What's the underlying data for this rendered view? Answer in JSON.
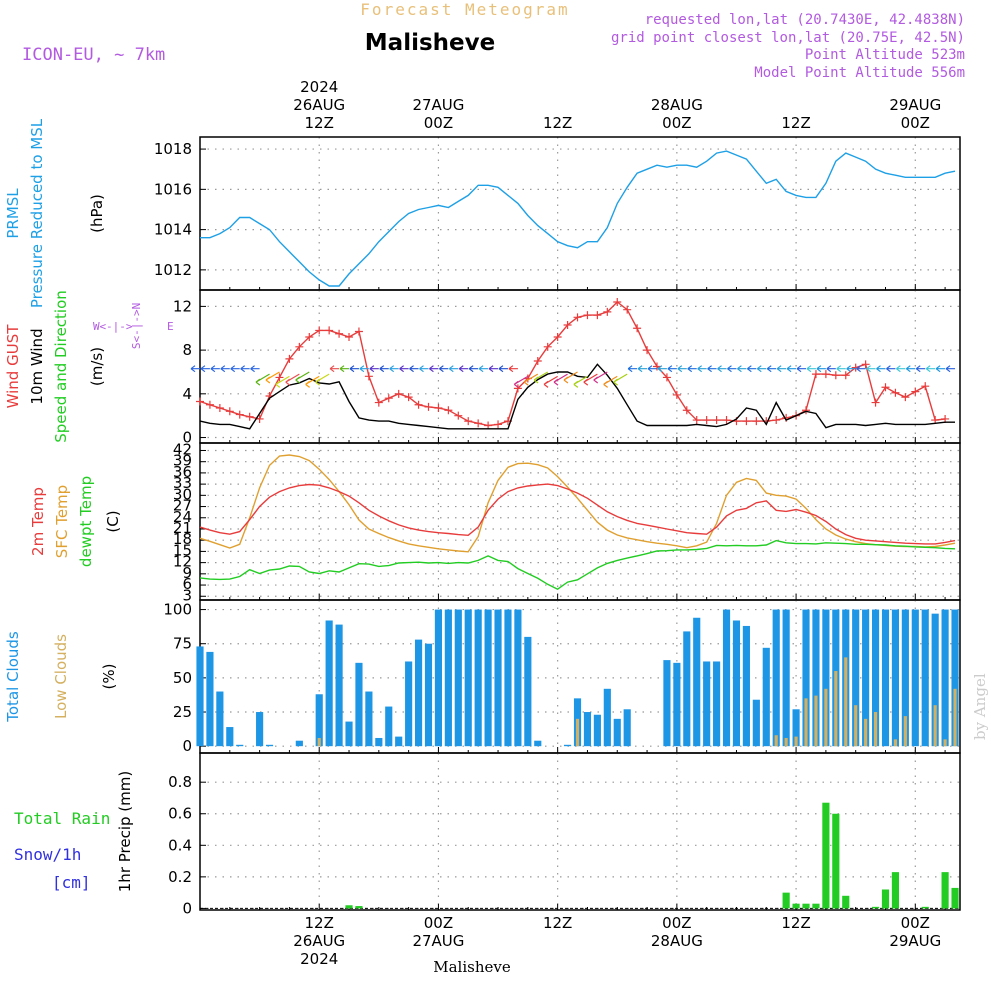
{
  "header": {
    "forecast_title": "Forecast Meteogram",
    "location": "Malisheve",
    "model": "ICON-EU, ~ 7km",
    "requested": "requested lon,lat (20.7430E, 42.4838N)",
    "grid_point": "grid point closest lon,lat (20.75E, 42.5N)",
    "point_altitude": "Point Altitude 523m",
    "model_altitude": "Model Point Altitude 556m",
    "footer_location": "Malisheve",
    "watermark": "by Angel"
  },
  "time_axis": {
    "top": [
      {
        "h": 12,
        "lines": [
          "2024",
          "26AUG",
          "12Z"
        ]
      },
      {
        "h": 24,
        "lines": [
          "27AUG",
          "00Z"
        ]
      },
      {
        "h": 36,
        "lines": [
          "12Z"
        ]
      },
      {
        "h": 48,
        "lines": [
          "28AUG",
          "00Z"
        ]
      },
      {
        "h": 60,
        "lines": [
          "12Z"
        ]
      },
      {
        "h": 72,
        "lines": [
          "29AUG",
          "00Z"
        ]
      }
    ],
    "bottom": [
      {
        "h": 12,
        "lines": [
          "12Z",
          "26AUG",
          "2024"
        ]
      },
      {
        "h": 24,
        "lines": [
          "00Z",
          "27AUG"
        ]
      },
      {
        "h": 36,
        "lines": [
          "12Z"
        ]
      },
      {
        "h": 48,
        "lines": [
          "00Z",
          "28AUG"
        ]
      },
      {
        "h": 60,
        "lines": [
          "12Z"
        ]
      },
      {
        "h": 72,
        "lines": [
          "00Z",
          "29AUG"
        ]
      }
    ]
  },
  "colors": {
    "pressure": "#1ea0e6",
    "gust": "#e83c3c",
    "wind": "#000000",
    "temp": "#e83c3c",
    "sfc": "#e0a030",
    "dewpt": "#22cc22",
    "total_clouds": "#1e96e6",
    "low_clouds": "#d4b060",
    "rain": "#22cc22",
    "snow": "#3030e0",
    "purple": "#b25ae0",
    "orange_title": "#e8c07a"
  },
  "panels": {
    "pressure": {
      "labels": [
        {
          "text": "PRMSL",
          "color": "pressure"
        },
        {
          "text": "Pressure Reduced to MSL",
          "color": "pressure"
        },
        {
          "text": "(hPa)",
          "color": "wind"
        }
      ],
      "yticks": [
        1012,
        1014,
        1016,
        1018
      ]
    },
    "wind": {
      "labels": [
        {
          "text": "Wind GUST",
          "color": "gust"
        },
        {
          "text": "10m Wind",
          "color": "wind"
        },
        {
          "text": "Speed and Direction",
          "color": "dewpt"
        },
        {
          "text": "(m/s)",
          "color": "wind"
        }
      ],
      "yticks": [
        0,
        4,
        8,
        12
      ],
      "compass": {
        "n": "N",
        "s": "S",
        "w": "W",
        "e": "E"
      }
    },
    "temp": {
      "labels": [
        {
          "text": "2m Temp",
          "color": "temp"
        },
        {
          "text": "SFC Temp",
          "color": "sfc"
        },
        {
          "text": "dewpt Temp",
          "color": "dewpt"
        },
        {
          "text": "(C)",
          "color": "wind"
        }
      ],
      "yticks": [
        3,
        6,
        9,
        12,
        15,
        18,
        21,
        24,
        27,
        30,
        33,
        36,
        39,
        42
      ]
    },
    "clouds": {
      "labels": [
        {
          "text": "Total Clouds",
          "color": "total_clouds"
        },
        {
          "text": "Low Clouds",
          "color": "low_clouds"
        },
        {
          "text": "(%)",
          "color": "wind"
        }
      ],
      "yticks": [
        0,
        25,
        50,
        75,
        100
      ]
    },
    "precip": {
      "labels": [
        {
          "text": "1hr Precip (mm)",
          "color": "wind"
        }
      ],
      "side_labels": [
        {
          "text": "Total  Rain",
          "color": "rain"
        },
        {
          "text": "Snow/1h",
          "color": "snow"
        },
        {
          "text": "[cm]",
          "color": "snow"
        }
      ],
      "yticks": [
        0,
        0.2,
        0.4,
        0.6,
        0.8
      ]
    }
  },
  "chart_data": {
    "type": "line",
    "x_unit": "hours from 2024-08-26 00Z",
    "xlim": [
      0,
      76.5
    ],
    "pressure": {
      "ylim": [
        1011,
        1018.6
      ],
      "x": [
        0,
        1,
        2,
        3,
        4,
        5,
        6,
        7,
        8,
        9,
        10,
        11,
        12,
        13,
        14,
        15,
        16,
        17,
        18,
        19,
        20,
        21,
        22,
        23,
        24,
        25,
        26,
        27,
        28,
        29,
        30,
        31,
        32,
        33,
        34,
        35,
        36,
        37,
        38,
        39,
        40,
        41,
        42,
        43,
        44,
        45,
        46,
        47,
        48,
        49,
        50,
        51,
        52,
        53,
        54,
        55,
        56,
        57,
        58,
        59,
        60,
        61,
        62,
        63,
        64,
        65,
        66,
        67,
        68,
        69,
        70,
        71,
        72,
        73,
        74,
        75,
        76
      ],
      "values": [
        1013.6,
        1013.6,
        1013.8,
        1014.1,
        1014.6,
        1014.6,
        1014.3,
        1014.0,
        1013.4,
        1012.9,
        1012.4,
        1011.9,
        1011.5,
        1011.2,
        1011.2,
        1011.8,
        1012.3,
        1012.8,
        1013.4,
        1013.9,
        1014.4,
        1014.8,
        1015.0,
        1015.1,
        1015.2,
        1015.1,
        1015.4,
        1015.7,
        1016.2,
        1016.2,
        1016.1,
        1015.7,
        1015.3,
        1014.7,
        1014.2,
        1013.8,
        1013.4,
        1013.2,
        1013.1,
        1013.4,
        1013.4,
        1014.1,
        1015.3,
        1016.1,
        1016.8,
        1017.0,
        1017.2,
        1017.1,
        1017.2,
        1017.2,
        1017.1,
        1017.4,
        1017.8,
        1017.9,
        1017.7,
        1017.5,
        1016.9,
        1016.3,
        1016.5,
        1015.9,
        1015.7,
        1015.6,
        1015.6,
        1016.3,
        1017.4,
        1017.8,
        1017.6,
        1017.4,
        1017.0,
        1016.8,
        1016.7,
        1016.6,
        1016.6,
        1016.6,
        1016.6,
        1016.8,
        1016.9
      ]
    },
    "wind": {
      "ylim": [
        -0.5,
        13.5
      ],
      "x": [
        0,
        1,
        2,
        3,
        4,
        5,
        6,
        7,
        8,
        9,
        10,
        11,
        12,
        13,
        14,
        15,
        16,
        17,
        18,
        19,
        20,
        21,
        22,
        23,
        24,
        25,
        26,
        27,
        28,
        29,
        30,
        31,
        32,
        33,
        34,
        35,
        36,
        37,
        38,
        39,
        40,
        41,
        42,
        43,
        44,
        45,
        46,
        47,
        48,
        49,
        50,
        51,
        52,
        53,
        54,
        55,
        56,
        57,
        58,
        59,
        60,
        61,
        62,
        63,
        64,
        65,
        66,
        67,
        68,
        69,
        70,
        71,
        72,
        73,
        74,
        75,
        76
      ],
      "gust": [
        3.3,
        3.0,
        2.7,
        2.4,
        2.1,
        1.9,
        1.7,
        3.8,
        5.5,
        7.2,
        8.3,
        9.2,
        9.8,
        9.8,
        9.5,
        9.2,
        9.7,
        5.6,
        3.2,
        3.6,
        4.0,
        3.7,
        3.0,
        2.8,
        2.7,
        2.5,
        2.0,
        1.5,
        1.3,
        1.1,
        1.2,
        1.5,
        4.5,
        5.4,
        7.0,
        8.3,
        9.2,
        10.3,
        11.0,
        11.2,
        11.2,
        11.5,
        12.4,
        11.7,
        10.0,
        8.0,
        6.5,
        5.5,
        3.9,
        2.5,
        1.6,
        1.6,
        1.6,
        1.6,
        1.5,
        1.5,
        1.5,
        1.5,
        1.6,
        1.8,
        2.0,
        2.5,
        5.8,
        5.8,
        5.7,
        5.7,
        6.4,
        6.7,
        3.2,
        4.6,
        4.1,
        3.7,
        4.2,
        4.7,
        1.6,
        1.7
      ],
      "speed": [
        1.5,
        1.3,
        1.2,
        1.2,
        1.0,
        0.8,
        2.2,
        3.6,
        4.2,
        4.8,
        5.0,
        5.4,
        5.0,
        4.9,
        5.1,
        3.3,
        1.8,
        1.6,
        1.5,
        1.5,
        1.3,
        1.2,
        1.1,
        1.0,
        0.9,
        0.8,
        0.8,
        0.8,
        0.8,
        0.8,
        0.8,
        0.8,
        3.5,
        4.6,
        5.3,
        5.8,
        6.0,
        6.0,
        5.6,
        5.5,
        6.7,
        5.7,
        4.5,
        3.0,
        1.5,
        1.1,
        1.1,
        1.1,
        1.1,
        1.1,
        1.2,
        1.1,
        1.0,
        1.2,
        1.7,
        2.7,
        2.5,
        1.2,
        3.2,
        1.6,
        2.0,
        2.4,
        2.2,
        0.9,
        1.2,
        1.2,
        1.2,
        1.1,
        1.2,
        1.3,
        1.2,
        1.2,
        1.2,
        1.2,
        1.3,
        1.4,
        1.4
      ]
    },
    "temp": {
      "ylim": [
        2,
        44
      ],
      "x": [
        0,
        1,
        2,
        3,
        4,
        5,
        6,
        7,
        8,
        9,
        10,
        11,
        12,
        13,
        14,
        15,
        16,
        17,
        18,
        19,
        20,
        21,
        22,
        23,
        24,
        25,
        26,
        27,
        28,
        29,
        30,
        31,
        32,
        33,
        34,
        35,
        36,
        37,
        38,
        39,
        40,
        41,
        42,
        43,
        44,
        45,
        46,
        47,
        48,
        49,
        50,
        51,
        52,
        53,
        54,
        55,
        56,
        57,
        58,
        59,
        60,
        61,
        62,
        63,
        64,
        65,
        66,
        67,
        68,
        69,
        70,
        71,
        72,
        73,
        74,
        75,
        76
      ],
      "t2m": [
        21.5,
        20.7,
        20.0,
        19.6,
        20.3,
        23.5,
        27.0,
        29.5,
        31.0,
        32.0,
        32.6,
        32.9,
        32.7,
        32.0,
        31.0,
        29.8,
        28.0,
        26.0,
        24.5,
        23.2,
        22.1,
        21.3,
        20.7,
        20.3,
        20.0,
        19.8,
        19.5,
        19.3,
        21.5,
        26.0,
        29.0,
        31.0,
        32.0,
        32.5,
        32.8,
        33.0,
        32.6,
        31.7,
        30.6,
        29.2,
        27.4,
        25.6,
        24.3,
        23.3,
        22.5,
        22.0,
        21.5,
        21.0,
        20.5,
        20.0,
        19.8,
        19.6,
        21.5,
        24.5,
        26.0,
        26.5,
        28.0,
        28.5,
        26.0,
        25.7,
        26.2,
        25.5,
        24.6,
        23.0,
        21.0,
        19.5,
        18.5,
        18.0,
        17.8,
        17.6,
        17.4,
        17.2,
        17.1,
        17.0,
        17.0,
        17.4,
        17.9
      ],
      "sfc": [
        18.5,
        17.7,
        16.8,
        15.9,
        16.9,
        24.0,
        32.0,
        38.0,
        40.5,
        40.8,
        40.4,
        39.3,
        37.0,
        34.2,
        31.0,
        27.5,
        23.4,
        21.0,
        19.8,
        18.7,
        17.8,
        17.0,
        16.5,
        16.1,
        15.7,
        15.4,
        15.1,
        14.9,
        19.0,
        28.0,
        34.0,
        37.5,
        38.5,
        38.6,
        38.2,
        37.3,
        35.0,
        32.2,
        29.2,
        26.0,
        22.8,
        20.7,
        19.4,
        18.6,
        18.1,
        17.6,
        17.2,
        16.9,
        16.5,
        16.0,
        16.5,
        17.5,
        22.5,
        30.0,
        33.5,
        34.5,
        34.0,
        30.6,
        30.0,
        29.8,
        29.0,
        26.5,
        23.5,
        21.0,
        19.4,
        18.3,
        17.6,
        17.1,
        16.8,
        16.6,
        16.4,
        16.3,
        16.3,
        16.2,
        16.3,
        16.7,
        17.2
      ],
      "dewpt": [
        7.9,
        7.6,
        7.5,
        7.6,
        8.3,
        10.1,
        9.1,
        10.0,
        10.3,
        11.1,
        11.0,
        9.5,
        9.1,
        9.8,
        9.5,
        10.6,
        11.7,
        11.6,
        11.0,
        11.2,
        11.9,
        12.0,
        12.1,
        11.9,
        12.0,
        11.8,
        12.0,
        11.9,
        12.6,
        13.8,
        12.6,
        12.3,
        10.4,
        9.1,
        7.8,
        6.2,
        4.9,
        6.8,
        7.4,
        9.0,
        10.6,
        11.8,
        12.6,
        13.2,
        13.8,
        14.4,
        15.1,
        15.2,
        15.4,
        15.4,
        15.5,
        15.8,
        16.6,
        16.5,
        16.6,
        16.5,
        16.5,
        16.7,
        17.9,
        17.3,
        17.1,
        17.1,
        17.0,
        17.3,
        17.2,
        17.1,
        16.9,
        16.9,
        16.8,
        16.7,
        16.5,
        16.4,
        16.2,
        16.1,
        16.0,
        15.8,
        15.7
      ]
    },
    "clouds": {
      "ylim": [
        -5,
        107
      ],
      "x": [
        0,
        1,
        2,
        3,
        4,
        5,
        6,
        7,
        8,
        9,
        10,
        11,
        12,
        13,
        14,
        15,
        16,
        17,
        18,
        19,
        20,
        21,
        22,
        23,
        24,
        25,
        26,
        27,
        28,
        29,
        30,
        31,
        32,
        33,
        34,
        35,
        36,
        37,
        38,
        39,
        40,
        41,
        42,
        43,
        44,
        45,
        46,
        47,
        48,
        49,
        50,
        51,
        52,
        53,
        54,
        55,
        56,
        57,
        58,
        59,
        60,
        61,
        62,
        63,
        64,
        65,
        66,
        67,
        68,
        69,
        70,
        71,
        72,
        73,
        74,
        75,
        76
      ],
      "total": [
        73,
        69,
        40,
        14,
        1,
        0,
        25,
        1,
        0,
        0,
        4,
        0,
        38,
        92,
        89,
        18,
        61,
        40,
        6,
        29,
        7,
        62,
        78,
        75,
        100,
        100,
        100,
        100,
        100,
        100,
        100,
        100,
        100,
        80,
        4,
        0,
        0,
        1,
        35,
        25,
        23,
        42,
        20,
        27,
        0,
        0,
        0,
        63,
        61,
        84,
        94,
        62,
        62,
        100,
        92,
        88,
        34,
        72,
        100,
        100,
        27,
        100,
        100,
        100,
        100,
        100,
        100,
        100,
        100,
        100,
        100,
        100,
        100,
        100,
        97,
        100,
        100
      ],
      "low": [
        0,
        0,
        0,
        0,
        0,
        0,
        0,
        0,
        0,
        0,
        0,
        0,
        6,
        0,
        0,
        0,
        0,
        0,
        0,
        0,
        0,
        0,
        0,
        0,
        0,
        0,
        0,
        0,
        0,
        0,
        0,
        0,
        0,
        0,
        0,
        0,
        0,
        0,
        20,
        0,
        0,
        0,
        0,
        0,
        0,
        0,
        0,
        0,
        0,
        0,
        0,
        0,
        0,
        0,
        0,
        0,
        0,
        0,
        8,
        6,
        7,
        35,
        37,
        42,
        55,
        65,
        30,
        20,
        25,
        0,
        5,
        22,
        0,
        0,
        30,
        5,
        42
      ]
    },
    "precip": {
      "ylim": [
        -0.01,
        0.985
      ],
      "x": [
        15,
        16,
        59,
        60,
        61,
        62,
        63,
        64,
        65,
        66,
        67,
        68,
        69,
        70,
        71,
        72,
        73,
        74,
        75,
        76
      ],
      "rain": [
        0.02,
        0.015,
        0.1,
        0.03,
        0.03,
        0.03,
        0.67,
        0.6,
        0.08,
        0,
        0,
        0.01,
        0.12,
        0.23,
        0,
        0,
        0.01,
        0,
        0.23,
        0.13
      ]
    }
  }
}
